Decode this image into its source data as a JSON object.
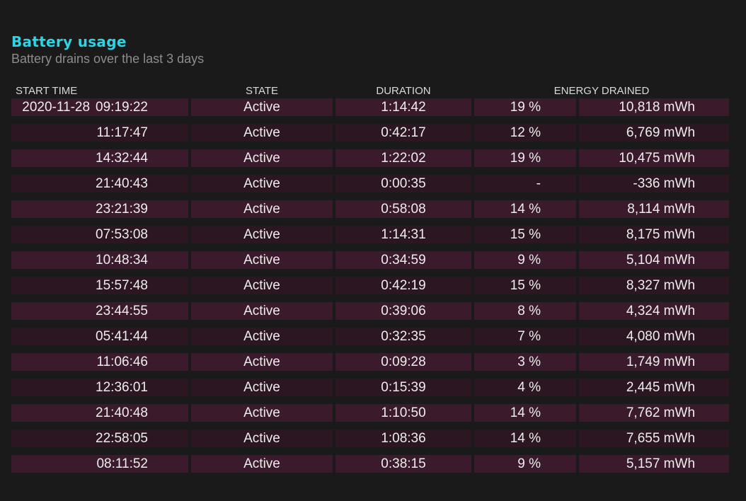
{
  "header": {
    "title": "Battery usage",
    "subtitle": "Battery drains over the last 3 days"
  },
  "columns": {
    "start_time": "START TIME",
    "state": "STATE",
    "duration": "DURATION",
    "energy_drained": "ENERGY DRAINED"
  },
  "rows": [
    {
      "date": "2020-11-28",
      "time": "09:19:22",
      "state": "Active",
      "duration": "1:14:42",
      "percent": "19 %",
      "energy": "10,818 mWh"
    },
    {
      "date": "",
      "time": "11:17:47",
      "state": "Active",
      "duration": "0:42:17",
      "percent": "12 %",
      "energy": "6,769 mWh"
    },
    {
      "date": "",
      "time": "14:32:44",
      "state": "Active",
      "duration": "1:22:02",
      "percent": "19 %",
      "energy": "10,475 mWh"
    },
    {
      "date": "",
      "time": "21:40:43",
      "state": "Active",
      "duration": "0:00:35",
      "percent": "-",
      "energy": "-336 mWh"
    },
    {
      "date": "",
      "time": "23:21:39",
      "state": "Active",
      "duration": "0:58:08",
      "percent": "14 %",
      "energy": "8,114 mWh"
    },
    {
      "date": "",
      "time": "07:53:08",
      "state": "Active",
      "duration": "1:14:31",
      "percent": "15 %",
      "energy": "8,175 mWh"
    },
    {
      "date": "",
      "time": "10:48:34",
      "state": "Active",
      "duration": "0:34:59",
      "percent": "9 %",
      "energy": "5,104 mWh"
    },
    {
      "date": "",
      "time": "15:57:48",
      "state": "Active",
      "duration": "0:42:19",
      "percent": "15 %",
      "energy": "8,327 mWh"
    },
    {
      "date": "",
      "time": "23:44:55",
      "state": "Active",
      "duration": "0:39:06",
      "percent": "8 %",
      "energy": "4,324 mWh"
    },
    {
      "date": "",
      "time": "05:41:44",
      "state": "Active",
      "duration": "0:32:35",
      "percent": "7 %",
      "energy": "4,080 mWh"
    },
    {
      "date": "",
      "time": "11:06:46",
      "state": "Active",
      "duration": "0:09:28",
      "percent": "3 %",
      "energy": "1,749 mWh"
    },
    {
      "date": "",
      "time": "12:36:01",
      "state": "Active",
      "duration": "0:15:39",
      "percent": "4 %",
      "energy": "2,445 mWh"
    },
    {
      "date": "",
      "time": "21:40:48",
      "state": "Active",
      "duration": "1:10:50",
      "percent": "14 %",
      "energy": "7,762 mWh"
    },
    {
      "date": "",
      "time": "22:58:05",
      "state": "Active",
      "duration": "1:08:36",
      "percent": "14 %",
      "energy": "7,655 mWh"
    },
    {
      "date": "",
      "time": "08:11:52",
      "state": "Active",
      "duration": "0:38:15",
      "percent": "9 %",
      "energy": "5,157 mWh"
    }
  ],
  "colors": {
    "background": "#1a1a1a",
    "title": "#2ed3e6",
    "subtitle": "#8d8d8d",
    "row_odd": "#3a1a2b",
    "row_even": "#2c1622"
  }
}
